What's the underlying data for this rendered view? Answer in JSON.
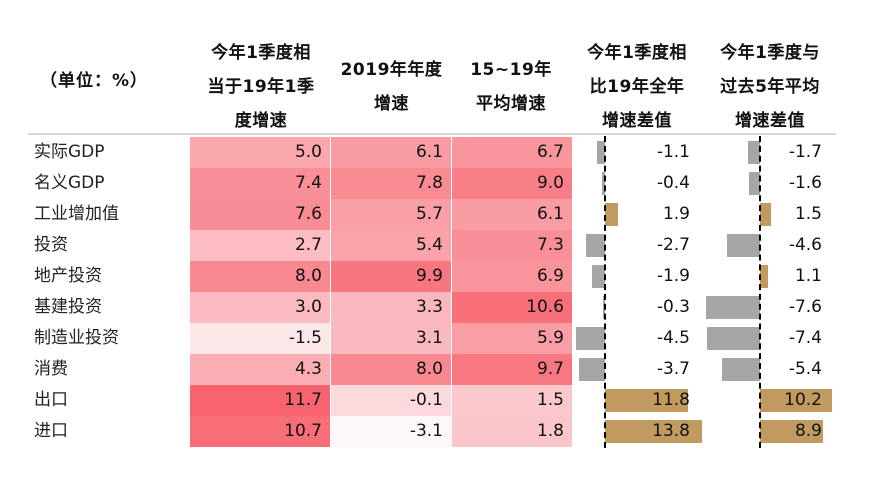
{
  "unit_label": "（单位：%）",
  "headers": [
    [
      "今年1季度相",
      "当于19年1季",
      "度增速"
    ],
    [
      "2019年年度",
      "增速"
    ],
    [
      "15~19年",
      "平均增速"
    ],
    [
      "今年1季度相",
      "比19年全年",
      "增速差值"
    ],
    [
      "今年1季度与",
      "过去5年平均",
      "增速差值"
    ]
  ],
  "colors": {
    "heat_high": "#f7646f",
    "heat_low": "#fdf7f8",
    "bar_neg": "#a6a6a6",
    "bar_pos": "#c09a5e"
  },
  "chart_data": {
    "type": "table",
    "categories": [
      "实际GDP",
      "名义GDP",
      "工业增加值",
      "投资",
      "地产投资",
      "基建投资",
      "制造业投资",
      "消费",
      "出口",
      "进口"
    ],
    "series": [
      {
        "name": "今年1季度相当于19年1季度增速",
        "values": [
          5.0,
          7.4,
          7.6,
          2.7,
          8.0,
          3.0,
          -1.5,
          4.3,
          11.7,
          10.7
        ],
        "display": [
          "5.0",
          "7.4",
          "7.6",
          "2.7",
          "8.0",
          "3.0",
          "-1.5",
          "4.3",
          "11.7",
          "10.7"
        ]
      },
      {
        "name": "2019年年度增速",
        "values": [
          6.1,
          7.8,
          5.7,
          5.4,
          9.9,
          3.3,
          3.1,
          8.0,
          -0.1,
          -3.1
        ],
        "display": [
          "6.1",
          "7.8",
          "5.7",
          "5.4",
          "9.9",
          "3.3",
          "3.1",
          "8.0",
          "-0.1",
          "-3.1"
        ]
      },
      {
        "name": "15~19年平均增速",
        "values": [
          6.7,
          9.0,
          6.1,
          7.3,
          6.9,
          10.6,
          5.9,
          9.7,
          1.5,
          1.8
        ],
        "display": [
          "6.7",
          "9.0",
          "6.1",
          "7.3",
          "6.9",
          "10.6",
          "5.9",
          "9.7",
          "1.5",
          "1.8"
        ]
      },
      {
        "name": "今年1季度相比19年全年增速差值",
        "values": [
          -1.1,
          -0.4,
          1.9,
          -2.7,
          -1.9,
          -0.3,
          -4.5,
          -3.7,
          11.8,
          13.8
        ],
        "display": [
          "-1.1",
          "-0.4",
          "1.9",
          "-2.7",
          "-1.9",
          "-0.3",
          "-4.5",
          "-3.7",
          "11.8",
          "13.8"
        ]
      },
      {
        "name": "今年1季度与过去5年平均增速差值",
        "values": [
          -1.7,
          -1.6,
          1.5,
          -4.6,
          1.1,
          -7.6,
          -7.4,
          -5.4,
          10.2,
          8.9
        ],
        "display": [
          "-1.7",
          "-1.6",
          "1.5",
          "-4.6",
          "1.1",
          "-7.6",
          "-7.4",
          "-5.4",
          "10.2",
          "8.9"
        ]
      }
    ]
  }
}
